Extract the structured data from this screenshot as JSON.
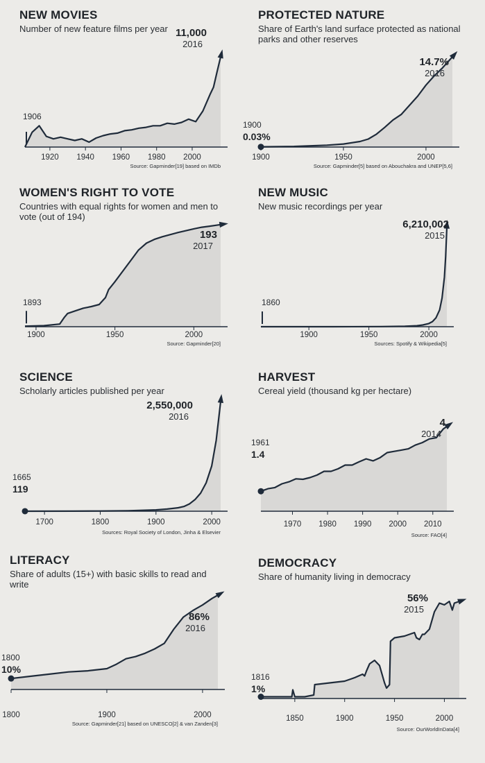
{
  "chart_data": [
    {
      "id": "movies",
      "type": "area",
      "title": "NEW MOVIES",
      "subtitle": "Number of new feature films per year",
      "xlim": [
        1906,
        2016
      ],
      "ylim": [
        0,
        11000
      ],
      "xticks": [
        1920,
        1940,
        1960,
        1980,
        2000
      ],
      "source": "Source: Gapminder[19] based on IMDb",
      "start": {
        "year": "1906",
        "value": "1"
      },
      "end": {
        "year": "2016",
        "value": "11,000"
      },
      "x": [
        1906,
        1910,
        1914,
        1918,
        1922,
        1926,
        1930,
        1934,
        1938,
        1942,
        1946,
        1950,
        1954,
        1958,
        1962,
        1966,
        1970,
        1974,
        1978,
        1982,
        1986,
        1990,
        1994,
        1998,
        2002,
        2006,
        2010,
        2012,
        2014,
        2016
      ],
      "values": [
        1,
        1800,
        2600,
        1300,
        1000,
        1200,
        1000,
        800,
        1000,
        600,
        1100,
        1400,
        1600,
        1700,
        2000,
        2100,
        2300,
        2400,
        2600,
        2600,
        2900,
        2800,
        3000,
        3400,
        3100,
        4400,
        6400,
        7300,
        9200,
        11000
      ]
    },
    {
      "id": "nature",
      "type": "area",
      "title": "PROTECTED NATURE",
      "subtitle": "Share of Earth's land surface protected as national parks and other reserves",
      "xlim": [
        1900,
        2016
      ],
      "ylim": [
        0,
        14.7
      ],
      "xticks": [
        1900,
        1950,
        2000
      ],
      "source": "Source: Gapminder[5] based on Abouchakra and UNEP[5,6]",
      "start": {
        "year": "1900",
        "value": "0.03%"
      },
      "end": {
        "year": "2016",
        "value": "14.7%"
      },
      "x": [
        1900,
        1920,
        1940,
        1950,
        1960,
        1965,
        1970,
        1975,
        1980,
        1985,
        1990,
        1995,
        2000,
        2005,
        2010,
        2016
      ],
      "values": [
        0.03,
        0.1,
        0.3,
        0.5,
        0.9,
        1.3,
        2.1,
        3.2,
        4.4,
        5.3,
        6.8,
        8.3,
        10.1,
        11.6,
        12.9,
        14.7
      ]
    },
    {
      "id": "vote",
      "type": "area",
      "title": "WOMEN'S RIGHT TO VOTE",
      "subtitle": "Countries with equal rights for women and men to vote (out of 194)",
      "xlim": [
        1893,
        2017
      ],
      "ylim": [
        0,
        194
      ],
      "xticks": [
        1900,
        1950,
        2000
      ],
      "source": "Source: Gapminder[20]",
      "start": {
        "year": "1893",
        "value": "1"
      },
      "end": {
        "year": "2017",
        "value": "193"
      },
      "x": [
        1893,
        1905,
        1915,
        1918,
        1920,
        1925,
        1930,
        1935,
        1940,
        1944,
        1946,
        1950,
        1955,
        1960,
        1965,
        1970,
        1975,
        1980,
        1990,
        2000,
        2005,
        2010,
        2017
      ],
      "values": [
        1,
        2,
        5,
        18,
        25,
        30,
        35,
        38,
        42,
        55,
        70,
        85,
        105,
        125,
        145,
        158,
        165,
        170,
        178,
        185,
        188,
        190,
        193
      ]
    },
    {
      "id": "music",
      "type": "area",
      "title": "NEW MUSIC",
      "subtitle": "New music recordings per year",
      "xlim": [
        1860,
        2015
      ],
      "ylim": [
        0,
        6210002
      ],
      "xticks": [
        1900,
        1950,
        2000
      ],
      "source": "Sources: Spotify & Wikipedia[5]",
      "start": {
        "year": "1860",
        "value": "1"
      },
      "end": {
        "year": "2015",
        "value": "6,210,002"
      },
      "x": [
        1860,
        1920,
        1960,
        1980,
        1990,
        1995,
        2000,
        2003,
        2006,
        2009,
        2011,
        2013,
        2014,
        2015
      ],
      "values": [
        1,
        1000,
        10000,
        30000,
        60000,
        110000,
        200000,
        320000,
        560000,
        1050000,
        1800000,
        3100000,
        4400000,
        6210002
      ]
    },
    {
      "id": "science",
      "type": "area",
      "title": "SCIENCE",
      "subtitle": "Scholarly articles published per year",
      "xlim": [
        1665,
        2016
      ],
      "ylim": [
        0,
        2550000
      ],
      "xticks": [
        1700,
        1800,
        1900,
        2000
      ],
      "source": "Sources: Royal Society of London, Jinha & Elsevier",
      "start": {
        "year": "1665",
        "value": "119"
      },
      "end": {
        "year": "2016",
        "value": "2,550,000"
      },
      "x": [
        1665,
        1750,
        1800,
        1850,
        1900,
        1920,
        1940,
        1950,
        1960,
        1970,
        1980,
        1990,
        2000,
        2008,
        2016
      ],
      "values": [
        119,
        1000,
        5000,
        12000,
        30000,
        50000,
        80000,
        110000,
        170000,
        270000,
        420000,
        660000,
        1050000,
        1650000,
        2550000
      ]
    },
    {
      "id": "harvest",
      "type": "area",
      "title": "HARVEST",
      "subtitle": "Cereal yield (thousand kg per hectare)",
      "xlim": [
        1961,
        2014
      ],
      "ylim": [
        0.6,
        4.3
      ],
      "xticks": [
        1970,
        1980,
        1990,
        2000,
        2010
      ],
      "source": "Source: FAO[4]",
      "start": {
        "year": "1961",
        "value": "1.4"
      },
      "end": {
        "year": "2014",
        "value": "4"
      },
      "x": [
        1961,
        1963,
        1965,
        1967,
        1969,
        1971,
        1973,
        1975,
        1977,
        1979,
        1981,
        1983,
        1985,
        1987,
        1989,
        1991,
        1993,
        1995,
        1997,
        1999,
        2001,
        2003,
        2005,
        2007,
        2009,
        2011,
        2013,
        2014
      ],
      "values": [
        1.4,
        1.5,
        1.55,
        1.7,
        1.78,
        1.9,
        1.88,
        1.95,
        2.05,
        2.2,
        2.2,
        2.3,
        2.45,
        2.45,
        2.58,
        2.7,
        2.62,
        2.75,
        2.95,
        3.0,
        3.05,
        3.1,
        3.25,
        3.35,
        3.5,
        3.55,
        3.9,
        4.0
      ]
    },
    {
      "id": "literacy",
      "type": "area",
      "title": "LITERACY",
      "subtitle": "Share of adults (15+) with basic skills to read and write",
      "xlim": [
        1800,
        2016
      ],
      "ylim": [
        0,
        86
      ],
      "xticks": [
        1800,
        1900,
        2000
      ],
      "source": "Source: Gapminder[21] based on UNESCO[2] & van Zanden[3]",
      "start": {
        "year": "1800",
        "value": "10%"
      },
      "end": {
        "year": "2016",
        "value": "86%"
      },
      "x": [
        1800,
        1820,
        1840,
        1860,
        1880,
        1900,
        1910,
        1920,
        1930,
        1940,
        1950,
        1960,
        1970,
        1980,
        1990,
        2000,
        2010,
        2016
      ],
      "values": [
        10,
        12,
        14,
        16,
        17,
        19,
        23,
        28,
        30,
        33,
        37,
        42,
        55,
        66,
        72,
        77,
        83,
        86
      ]
    },
    {
      "id": "democracy",
      "type": "area",
      "title": "DEMOCRACY",
      "subtitle": "Share of humanity living in democracy",
      "xlim": [
        1816,
        2015
      ],
      "ylim": [
        0,
        56
      ],
      "xticks": [
        1850,
        1900,
        1950,
        2000
      ],
      "source": "Source: OurWorldInData[4]",
      "start": {
        "year": "1816",
        "value": "1%"
      },
      "end": {
        "year": "2015",
        "value": "56%"
      },
      "x": [
        1816,
        1847,
        1848,
        1850,
        1860,
        1869,
        1870,
        1900,
        1910,
        1918,
        1920,
        1922,
        1925,
        1930,
        1935,
        1940,
        1942,
        1945,
        1946,
        1950,
        1960,
        1970,
        1972,
        1975,
        1978,
        1980,
        1985,
        1990,
        1995,
        2000,
        2005,
        2008,
        2010,
        2015
      ],
      "values": [
        1,
        1,
        5,
        1,
        1,
        2,
        8,
        10,
        12,
        14,
        13,
        16,
        20,
        22,
        19,
        9,
        6,
        8,
        33,
        35,
        36,
        38,
        35,
        34,
        37,
        37,
        40,
        50,
        55,
        54,
        56,
        51,
        55,
        56
      ]
    }
  ]
}
